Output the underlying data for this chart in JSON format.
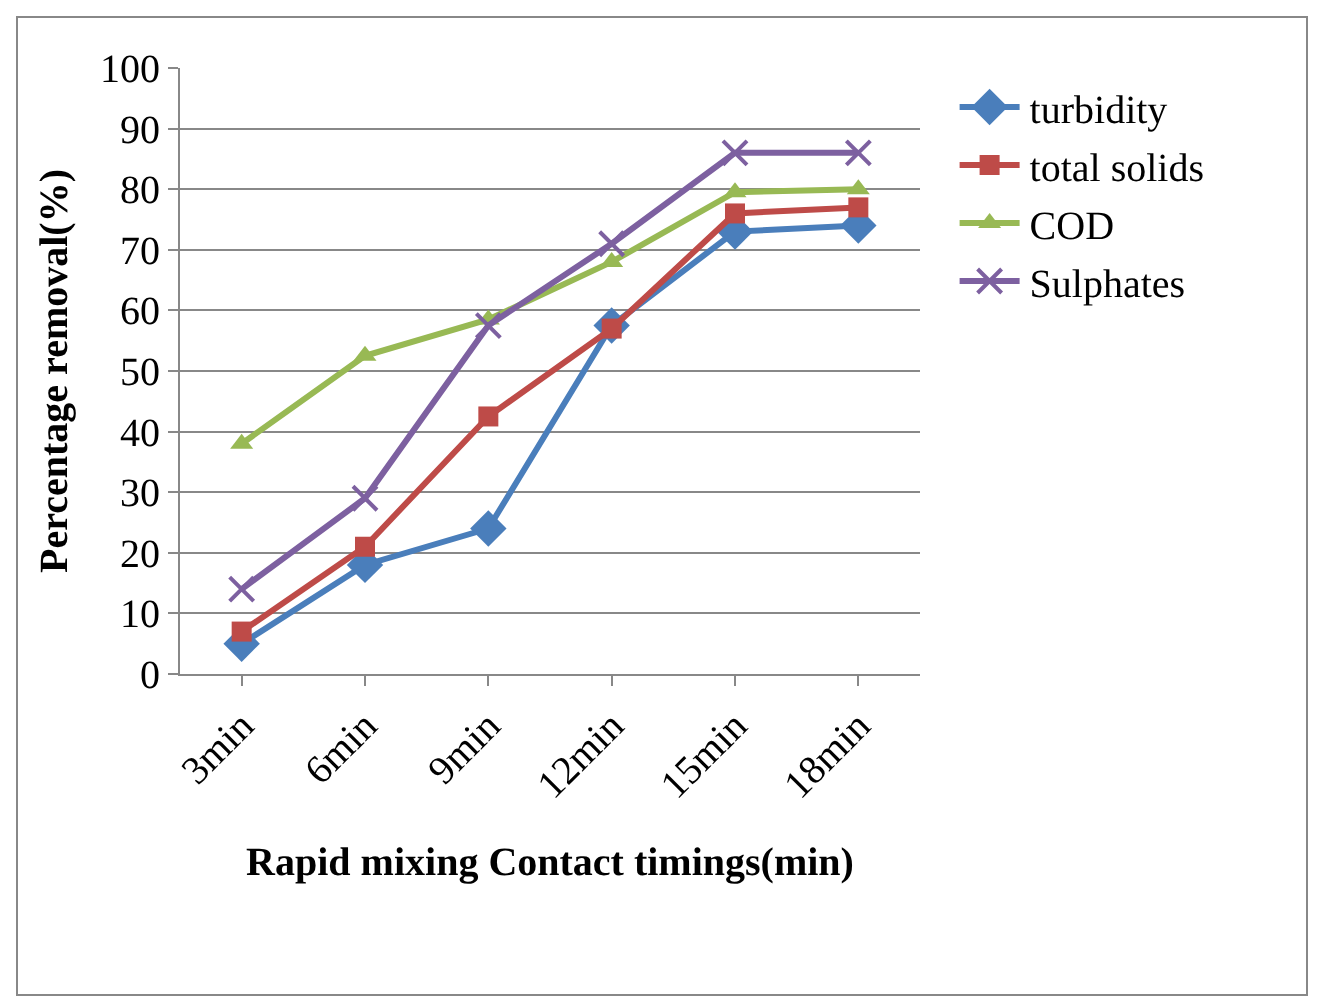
{
  "chart_data": {
    "type": "line",
    "xlabel": "Rapid mixing Contact timings(min)",
    "ylabel": "Percentage removal(%)",
    "categories": [
      "3min",
      "6min",
      "9min",
      "12min",
      "15min",
      "18min"
    ],
    "series": [
      {
        "name": "turbidity",
        "color": "#4a7ebb",
        "marker": "diamond",
        "values": [
          5,
          18,
          24,
          57.5,
          73,
          74
        ]
      },
      {
        "name": "total solids",
        "color": "#be4b48",
        "marker": "square",
        "values": [
          7,
          21,
          42.5,
          57,
          76,
          77
        ]
      },
      {
        "name": "COD",
        "color": "#98b954",
        "marker": "triangle",
        "values": [
          38,
          52.5,
          58.5,
          68,
          79.5,
          80
        ]
      },
      {
        "name": "Sulphates",
        "color": "#7d60a0",
        "marker": "cross",
        "values": [
          14,
          29,
          57.5,
          71,
          86,
          86
        ]
      }
    ],
    "ylim": [
      0,
      100
    ],
    "yticks": [
      0,
      10,
      20,
      30,
      40,
      50,
      60,
      70,
      80,
      90,
      100
    ],
    "grid": "y",
    "legend": "right"
  }
}
